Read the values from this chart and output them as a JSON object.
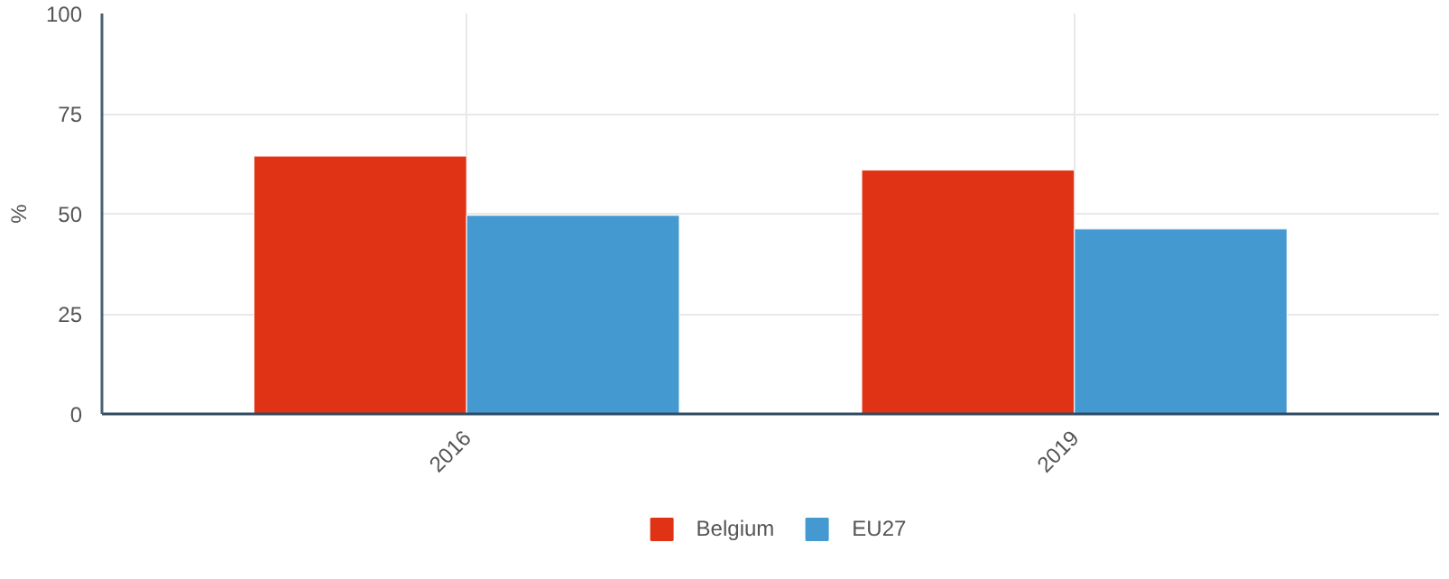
{
  "chart_data": {
    "type": "bar",
    "ylabel": "%",
    "categories": [
      "2016",
      "2019"
    ],
    "series": [
      {
        "name": "Belgium",
        "color": "#e03214",
        "values": [
          64.4,
          60.9
        ]
      },
      {
        "name": "EU27",
        "color": "#4499d0",
        "values": [
          49.6,
          46.2
        ]
      }
    ],
    "ylim": [
      0,
      100
    ],
    "yticks": [
      0,
      25,
      50,
      75,
      100
    ],
    "grid": true,
    "legend": "bottom"
  }
}
